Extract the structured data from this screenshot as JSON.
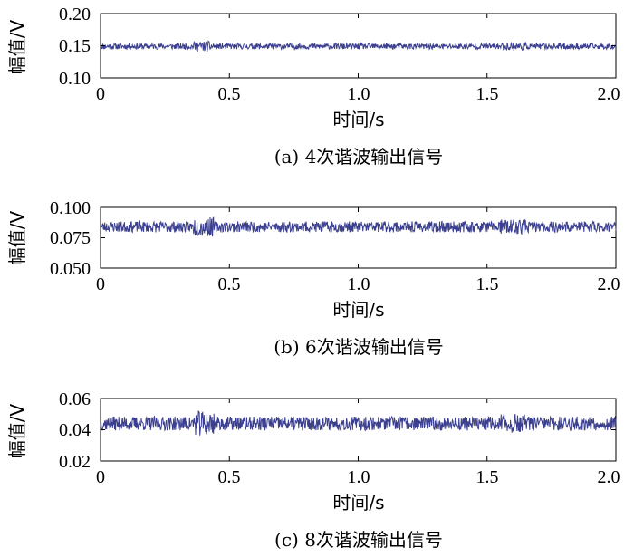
{
  "chart_data": [
    {
      "type": "line",
      "caption": "(a) 4次谐波输出信号",
      "xlabel": "时间/s",
      "ylabel": "幅值/V",
      "xlim": [
        0,
        2.0
      ],
      "ylim": [
        0.1,
        0.2
      ],
      "xticks": [
        "0",
        "0.5",
        "1.0",
        "1.5",
        "2.0"
      ],
      "yticks": [
        "0.10",
        "0.15",
        "0.20"
      ],
      "series": [
        {
          "color": "#3b3f8f",
          "level": 0.149,
          "noise": 0.0045,
          "x": [
            0,
            2.0
          ]
        }
      ]
    },
    {
      "type": "line",
      "caption": "(b) 6次谐波输出信号",
      "xlabel": "时间/s",
      "ylabel": "幅值/V",
      "xlim": [
        0,
        2.0
      ],
      "ylim": [
        0.05,
        0.1
      ],
      "xticks": [
        "0",
        "0.5",
        "1.0",
        "1.5",
        "2.0"
      ],
      "yticks": [
        "0.050",
        "0.075",
        "0.100"
      ],
      "series": [
        {
          "color": "#3b3f8f",
          "level": 0.084,
          "noise": 0.0045,
          "x": [
            0,
            2.0
          ]
        }
      ]
    },
    {
      "type": "line",
      "caption": "(c) 8次谐波输出信号",
      "xlabel": "时间/s",
      "ylabel": "幅值/V",
      "xlim": [
        0,
        2.0
      ],
      "ylim": [
        0.02,
        0.06
      ],
      "xticks": [
        "0",
        "0.5",
        "1.0",
        "1.5",
        "2.0"
      ],
      "yticks": [
        "0.02",
        "0.04",
        "0.06"
      ],
      "series": [
        {
          "color": "#3b3f8f",
          "level": 0.044,
          "noise": 0.0045,
          "x": [
            0,
            2.0
          ]
        }
      ]
    }
  ]
}
